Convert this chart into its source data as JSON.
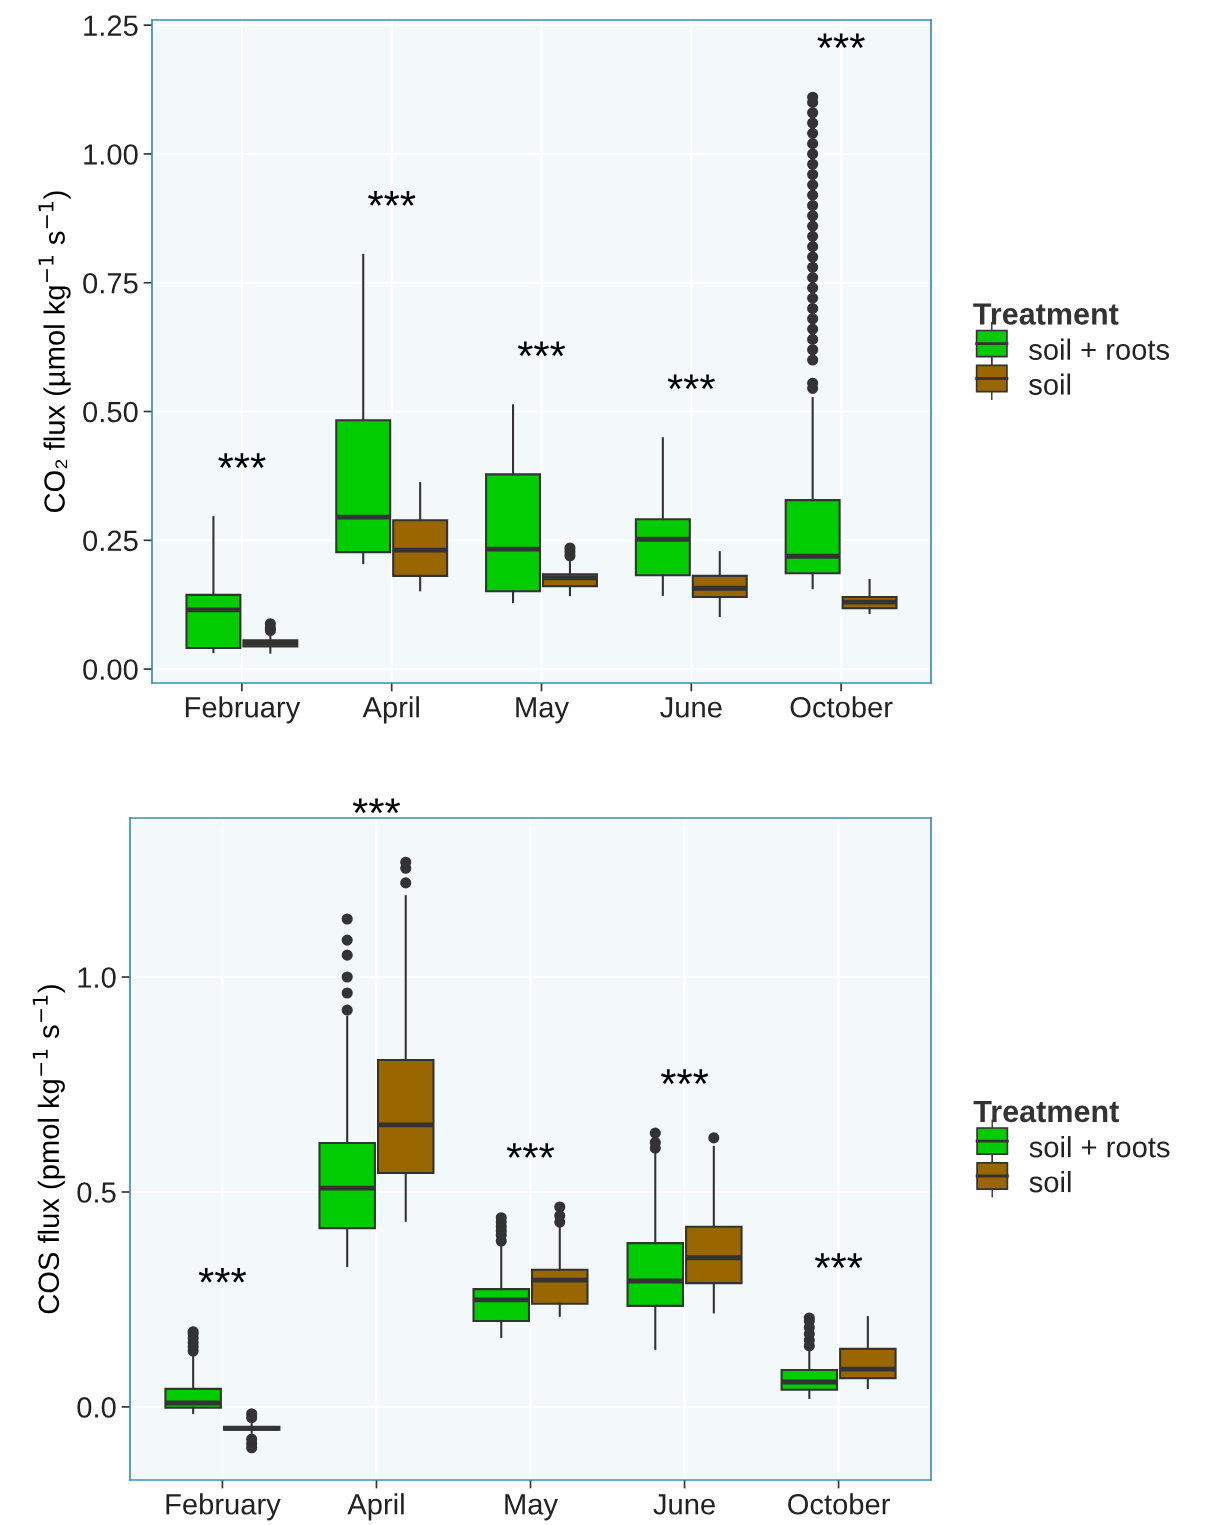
{
  "chart_data": [
    {
      "type": "box",
      "ylabel": "CO₂ flux (µmol kg$^{−1}$ s$^{−1}$)",
      "legend_title": "Treatment",
      "legend": "right",
      "grid": true,
      "categories": [
        "February",
        "April",
        "May",
        "June",
        "October"
      ],
      "ylim": [
        -0.027,
        1.26
      ],
      "yticks": [
        {
          "value": 0,
          "label": "0.00"
        },
        0.25,
        {
          "value": 0.5,
          "label": "0.50"
        },
        0.75,
        {
          "value": 1,
          "label": "1.00"
        },
        1.25
      ],
      "series": [
        {
          "name": "soil + roots",
          "color": "#00cc00",
          "boxes": [
            {
              "low": 0.033,
              "q1": 0.041,
              "median": 0.115,
              "q3": 0.144,
              "high": 0.295
            },
            {
              "low": 0.206,
              "q1": 0.227,
              "median": 0.295,
              "q3": 0.483,
              "high": 0.804
            },
            {
              "low": 0.13,
              "q1": 0.151,
              "median": 0.233,
              "q3": 0.378,
              "high": 0.512
            },
            {
              "low": 0.144,
              "q1": 0.182,
              "median": 0.252,
              "q3": 0.291,
              "high": 0.448
            },
            {
              "low": 0.157,
              "q1": 0.186,
              "median": 0.219,
              "q3": 0.328,
              "high": 0.526,
              "outliers": [
                0.545,
                0.555,
                0.6,
                0.62,
                0.64,
                0.66,
                0.68,
                0.7,
                0.72,
                0.74,
                0.76,
                0.78,
                0.8,
                0.82,
                0.84,
                0.86,
                0.88,
                0.9,
                0.92,
                0.94,
                0.96,
                0.98,
                1.0,
                1.02,
                1.04,
                1.06,
                1.08,
                1.1,
                1.11
              ]
            }
          ]
        },
        {
          "name": "soil",
          "color": "#996600",
          "boxes": [
            {
              "low": 0.032,
              "q1": 0.044,
              "median": 0.05,
              "q3": 0.056,
              "high": 0.063,
              "outliers": [
                0.075,
                0.08,
                0.088
              ]
            },
            {
              "low": 0.153,
              "q1": 0.181,
              "median": 0.231,
              "q3": 0.289,
              "high": 0.361
            },
            {
              "low": 0.144,
              "q1": 0.161,
              "median": 0.177,
              "q3": 0.184,
              "high": 0.21,
              "outliers": [
                0.22,
                0.228,
                0.235
              ]
            },
            {
              "low": 0.103,
              "q1": 0.14,
              "median": 0.157,
              "q3": 0.181,
              "high": 0.227
            },
            {
              "low": 0.109,
              "q1": 0.118,
              "median": 0.13,
              "q3": 0.14,
              "high": 0.173
            }
          ]
        }
      ],
      "annotations": [
        "***",
        "***",
        "***",
        "***",
        "***"
      ]
    },
    {
      "type": "box",
      "ylabel": "COS flux (pmol kg$^{−1}$ s$^{−1}$)",
      "legend_title": "Treatment",
      "legend": "right",
      "grid": true,
      "categories": [
        "February",
        "April",
        "May",
        "June",
        "October"
      ],
      "ylim": [
        -0.17,
        1.37
      ],
      "yticks": [
        {
          "value": 0,
          "label": "0.0"
        },
        0.5,
        {
          "value": 1,
          "label": "1.0"
        }
      ],
      "series": [
        {
          "name": "soil + roots",
          "color": "#00cc00",
          "boxes": [
            {
              "low": -0.014,
              "q1": -0.002,
              "median": 0.009,
              "q3": 0.042,
              "high": 0.125,
              "outliers": [
                0.13,
                0.14,
                0.15,
                0.16,
                0.17,
                0.175
              ]
            },
            {
              "low": 0.328,
              "q1": 0.416,
              "median": 0.509,
              "q3": 0.614,
              "high": 0.907,
              "outliers": [
                0.923,
                0.963,
                1.0,
                1.051,
                1.086,
                1.135
              ]
            },
            {
              "low": 0.163,
              "q1": 0.2,
              "median": 0.249,
              "q3": 0.274,
              "high": 0.377,
              "outliers": [
                0.386,
                0.4,
                0.41,
                0.42,
                0.43,
                0.44
              ]
            },
            {
              "low": 0.135,
              "q1": 0.235,
              "median": 0.293,
              "q3": 0.381,
              "high": 0.59,
              "outliers": [
                0.602,
                0.615,
                0.637
              ]
            },
            {
              "low": 0.021,
              "q1": 0.04,
              "median": 0.058,
              "q3": 0.086,
              "high": 0.135,
              "outliers": [
                0.142,
                0.155,
                0.17,
                0.185,
                0.2,
                0.207
              ]
            }
          ]
        },
        {
          "name": "soil",
          "color": "#996600",
          "boxes": [
            {
              "low": -0.06,
              "q1": -0.053,
              "median": -0.05,
              "q3": -0.046,
              "high": -0.04,
              "outliers": [
                -0.025,
                -0.016,
                -0.075,
                -0.085,
                -0.095
              ]
            },
            {
              "low": 0.433,
              "q1": 0.544,
              "median": 0.656,
              "q3": 0.807,
              "high": 1.188,
              "outliers": [
                1.219,
                1.253,
                1.267
              ]
            },
            {
              "low": 0.212,
              "q1": 0.24,
              "median": 0.295,
              "q3": 0.319,
              "high": 0.42,
              "outliers": [
                0.43,
                0.445,
                0.465
              ]
            },
            {
              "low": 0.22,
              "q1": 0.288,
              "median": 0.347,
              "q3": 0.419,
              "high": 0.605,
              "outliers": [
                0.626
              ]
            },
            {
              "low": 0.044,
              "q1": 0.067,
              "median": 0.088,
              "q3": 0.135,
              "high": 0.209
            }
          ]
        }
      ],
      "annotations": [
        "***",
        "***",
        "***",
        "***",
        "***"
      ]
    }
  ]
}
